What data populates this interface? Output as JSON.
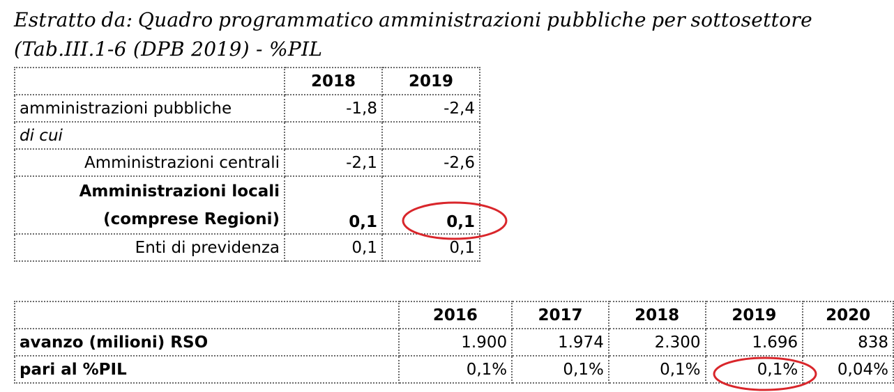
{
  "heading": {
    "line1_words": [
      "Estratto",
      "da:",
      "Quadro",
      "programmatico",
      "amministrazioni",
      "pubbliche",
      "per",
      "sottosettore"
    ],
    "line2": "(Tab.III.1-6 (DPB 2019) - %PIL"
  },
  "table1": {
    "headers": [
      "",
      "2018",
      "2019"
    ],
    "rows": {
      "ap": {
        "label": "amministrazioni pubbliche",
        "v2018": "-1,8",
        "v2019": "-2,4"
      },
      "dicui": {
        "label": "di cui"
      },
      "centrali": {
        "label": "Amministrazioni centrali",
        "v2018": "-2,1",
        "v2019": "-2,6"
      },
      "locali": {
        "label_line1": "Amministrazioni locali",
        "label_line2": "(comprese Regioni)",
        "v2018": "0,1",
        "v2019": "0,1"
      },
      "previdenza": {
        "label": "Enti di  previdenza",
        "v2018": "0,1",
        "v2019": "0,1"
      }
    }
  },
  "table2": {
    "headers": [
      "",
      "2016",
      "2017",
      "2018",
      "2019",
      "2020"
    ],
    "rows": {
      "avanzo": {
        "label": "avanzo (milioni) RSO",
        "values": [
          "1.900",
          "1.974",
          "2.300",
          "1.696",
          "838"
        ]
      },
      "pil": {
        "label": "pari al %PIL",
        "values": [
          "0,1%",
          "0,1%",
          "0,1%",
          "0,1%",
          "0,04%"
        ]
      }
    }
  },
  "annotations": {
    "circle_color": "#d9262b",
    "circled_cells": [
      "table1 Amministrazioni locali 2019",
      "table2 pari al %PIL 2019"
    ]
  }
}
